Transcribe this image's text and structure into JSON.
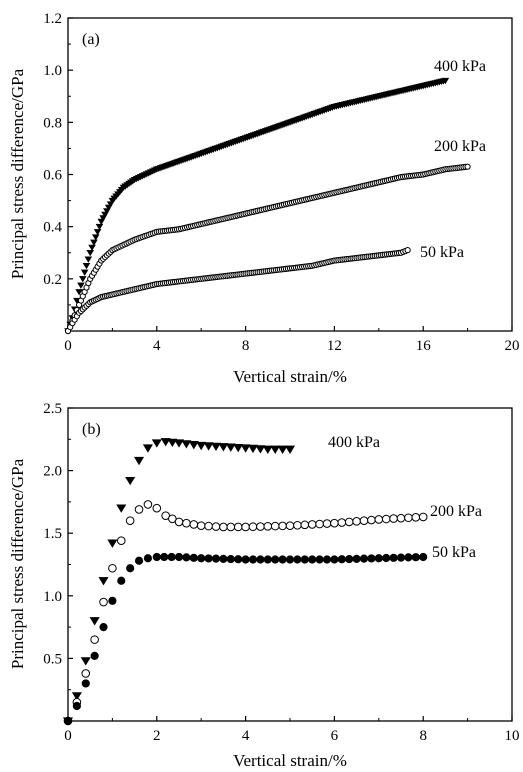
{
  "chart_data": [
    {
      "type": "scatter",
      "panel_label": "(a)",
      "xlabel": "Vertical strain/%",
      "ylabel": "Principal stress difference/GPa",
      "xlim": [
        0,
        20
      ],
      "ylim": [
        0,
        1.2
      ],
      "xticks": [
        "0",
        "4",
        "8",
        "12",
        "16",
        "20"
      ],
      "yticks": [
        "0.2",
        "0.4",
        "0.6",
        "0.8",
        "1.0",
        "1.2"
      ],
      "series": [
        {
          "name": "400 kPa",
          "marker": "triangle-down",
          "points": [
            [
              0,
              0
            ],
            [
              0.2,
              0.05
            ],
            [
              0.5,
              0.15
            ],
            [
              1,
              0.3
            ],
            [
              1.5,
              0.42
            ],
            [
              2,
              0.5
            ],
            [
              2.5,
              0.55
            ],
            [
              3,
              0.58
            ],
            [
              4,
              0.62
            ],
            [
              5,
              0.65
            ],
            [
              6,
              0.68
            ],
            [
              7,
              0.71
            ],
            [
              8,
              0.74
            ],
            [
              9,
              0.77
            ],
            [
              10,
              0.8
            ],
            [
              11,
              0.83
            ],
            [
              12,
              0.86
            ],
            [
              13,
              0.88
            ],
            [
              14,
              0.9
            ],
            [
              15,
              0.92
            ],
            [
              16,
              0.94
            ],
            [
              17,
              0.96
            ]
          ]
        },
        {
          "name": "200 kPa",
          "marker": "circle-open",
          "points": [
            [
              0,
              0
            ],
            [
              0.2,
              0.04
            ],
            [
              0.5,
              0.1
            ],
            [
              1,
              0.2
            ],
            [
              1.5,
              0.27
            ],
            [
              2,
              0.31
            ],
            [
              3,
              0.35
            ],
            [
              4,
              0.38
            ],
            [
              5,
              0.39
            ],
            [
              6,
              0.41
            ],
            [
              7,
              0.43
            ],
            [
              8,
              0.45
            ],
            [
              9,
              0.47
            ],
            [
              10,
              0.49
            ],
            [
              11,
              0.51
            ],
            [
              12,
              0.53
            ],
            [
              13,
              0.55
            ],
            [
              14,
              0.57
            ],
            [
              15,
              0.59
            ],
            [
              16,
              0.6
            ],
            [
              17,
              0.62
            ],
            [
              18,
              0.63
            ]
          ]
        },
        {
          "name": "50 kPa",
          "marker": "circle-open",
          "points": [
            [
              0,
              0
            ],
            [
              0.2,
              0.03
            ],
            [
              0.5,
              0.07
            ],
            [
              1,
              0.11
            ],
            [
              1.5,
              0.13
            ],
            [
              2,
              0.14
            ],
            [
              3,
              0.16
            ],
            [
              4,
              0.18
            ],
            [
              5,
              0.19
            ],
            [
              6,
              0.2
            ],
            [
              7,
              0.21
            ],
            [
              8,
              0.22
            ],
            [
              9,
              0.23
            ],
            [
              10,
              0.24
            ],
            [
              11,
              0.25
            ],
            [
              12,
              0.27
            ],
            [
              13,
              0.28
            ],
            [
              14,
              0.29
            ],
            [
              15,
              0.3
            ],
            [
              15.3,
              0.31
            ]
          ]
        }
      ]
    },
    {
      "type": "scatter",
      "panel_label": "(b)",
      "xlabel": "Vertical strain/%",
      "ylabel": "Principal stress difference/GPa",
      "xlim": [
        0,
        10
      ],
      "ylim": [
        0,
        2.5
      ],
      "xticks": [
        "0",
        "2",
        "4",
        "6",
        "8",
        "10"
      ],
      "yticks": [
        "0.5",
        "1.0",
        "1.5",
        "2.0",
        "2.5"
      ],
      "series": [
        {
          "name": "400 kPa",
          "marker": "triangle-down-filled",
          "points": [
            [
              0,
              0
            ],
            [
              0.2,
              0.2
            ],
            [
              0.4,
              0.48
            ],
            [
              0.6,
              0.8
            ],
            [
              0.8,
              1.12
            ],
            [
              1,
              1.42
            ],
            [
              1.2,
              1.7
            ],
            [
              1.4,
              1.92
            ],
            [
              1.6,
              2.08
            ],
            [
              1.8,
              2.18
            ],
            [
              2,
              2.22
            ],
            [
              2.2,
              2.23
            ],
            [
              2.5,
              2.22
            ],
            [
              3,
              2.2
            ],
            [
              3.5,
              2.19
            ],
            [
              4,
              2.18
            ],
            [
              4.5,
              2.17
            ],
            [
              5,
              2.17
            ]
          ]
        },
        {
          "name": "200 kPa",
          "marker": "circle-open",
          "points": [
            [
              0,
              0
            ],
            [
              0.2,
              0.15
            ],
            [
              0.4,
              0.38
            ],
            [
              0.6,
              0.65
            ],
            [
              0.8,
              0.95
            ],
            [
              1,
              1.22
            ],
            [
              1.2,
              1.44
            ],
            [
              1.4,
              1.6
            ],
            [
              1.6,
              1.69
            ],
            [
              1.8,
              1.73
            ],
            [
              2,
              1.7
            ],
            [
              2.2,
              1.64
            ],
            [
              2.5,
              1.59
            ],
            [
              3,
              1.56
            ],
            [
              3.5,
              1.55
            ],
            [
              4,
              1.55
            ],
            [
              5,
              1.56
            ],
            [
              6,
              1.58
            ],
            [
              7,
              1.61
            ],
            [
              8,
              1.63
            ]
          ]
        },
        {
          "name": "50 kPa",
          "marker": "circle-filled",
          "points": [
            [
              0,
              0
            ],
            [
              0.2,
              0.12
            ],
            [
              0.4,
              0.3
            ],
            [
              0.6,
              0.52
            ],
            [
              0.8,
              0.75
            ],
            [
              1,
              0.96
            ],
            [
              1.2,
              1.12
            ],
            [
              1.4,
              1.22
            ],
            [
              1.6,
              1.28
            ],
            [
              1.8,
              1.3
            ],
            [
              2,
              1.31
            ],
            [
              2.5,
              1.31
            ],
            [
              3,
              1.3
            ],
            [
              4,
              1.29
            ],
            [
              5,
              1.29
            ],
            [
              6,
              1.29
            ],
            [
              7,
              1.3
            ],
            [
              8,
              1.31
            ]
          ]
        }
      ]
    }
  ]
}
